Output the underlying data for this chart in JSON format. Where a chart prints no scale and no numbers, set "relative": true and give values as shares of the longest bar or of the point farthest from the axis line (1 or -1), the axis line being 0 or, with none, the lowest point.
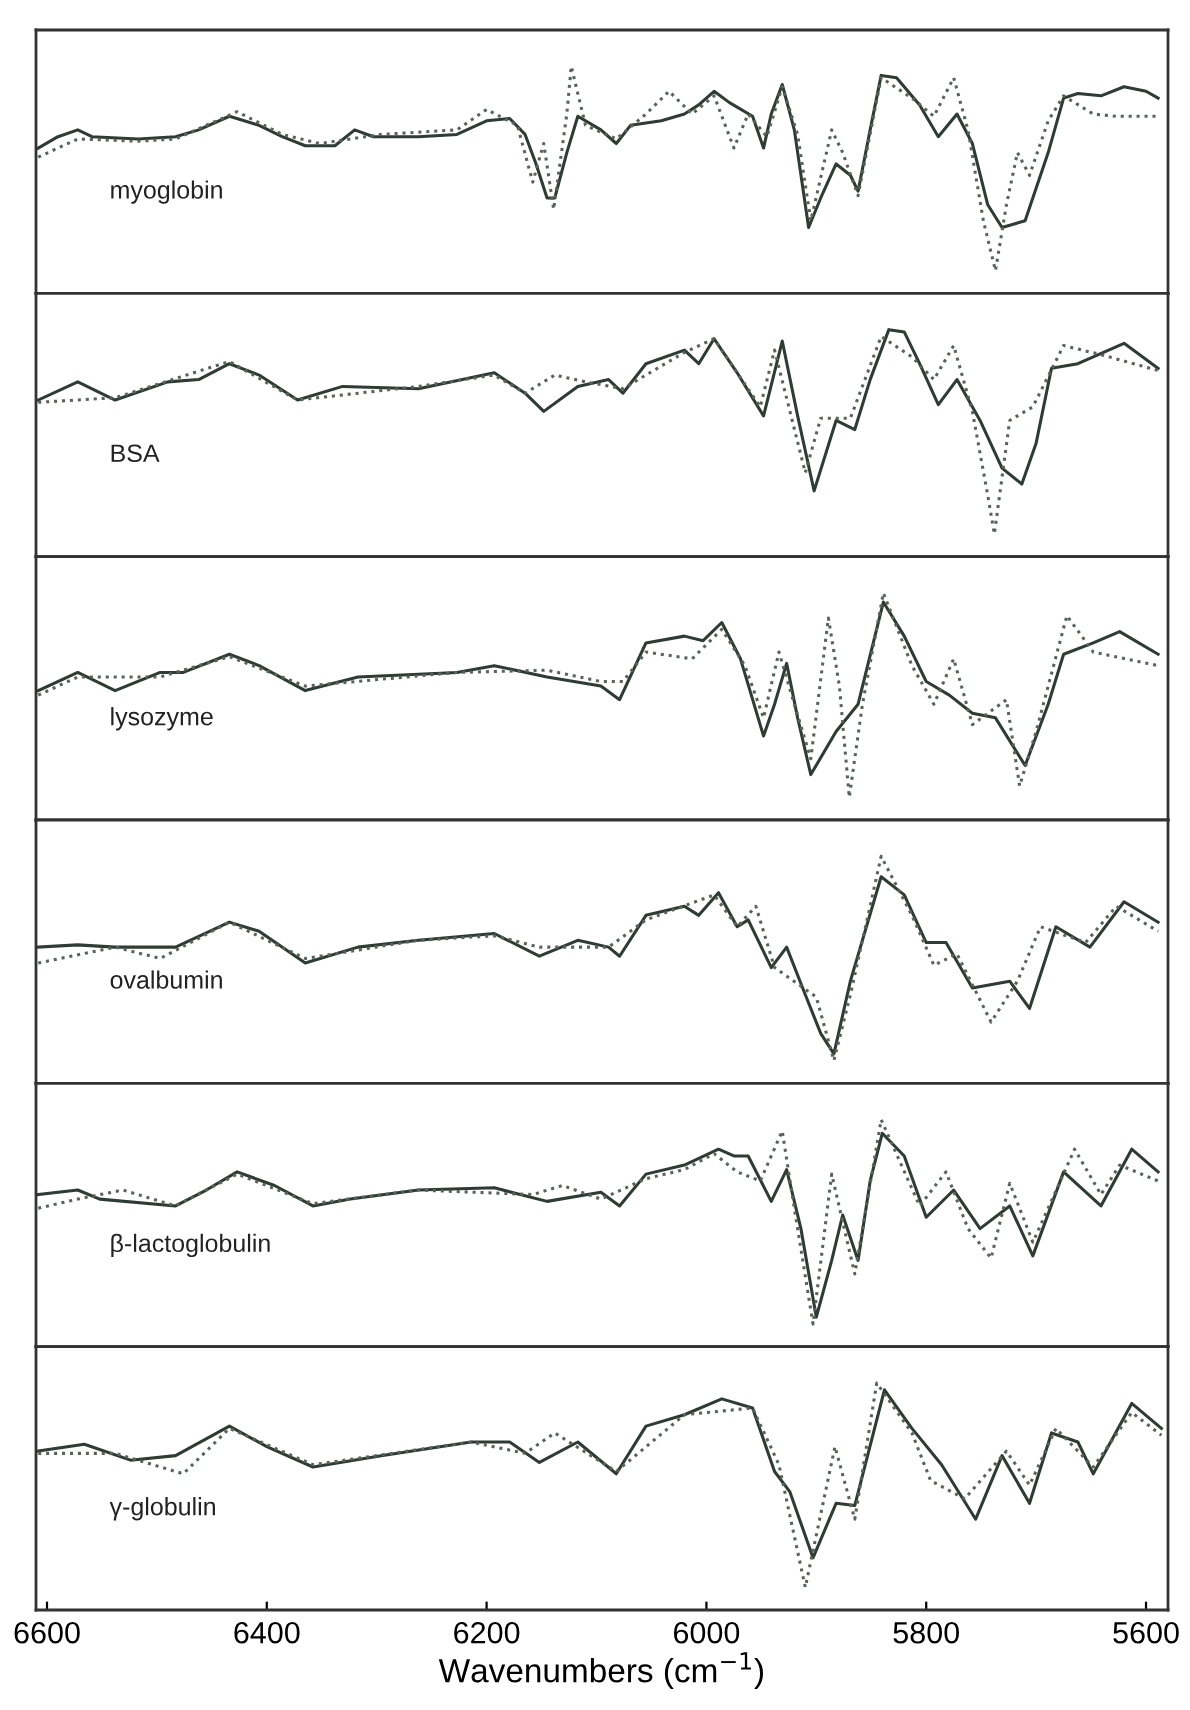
{
  "chart_data": [
    {
      "type": "line",
      "relative": true,
      "xlim": [
        6610,
        5580
      ],
      "tick_labels": false,
      "annotations": [
        "myoglobin"
      ],
      "series": [
        {
          "color": "#2f3b35",
          "line_style": "solid",
          "x": [
            6608,
            6590,
            6572,
            6559,
            6517,
            6483,
            6462,
            6434,
            6407,
            6386,
            6365,
            6338,
            6320,
            6303,
            6262,
            6227,
            6200,
            6179,
            6165,
            6155,
            6145,
            6138,
            6127,
            6117,
            6096,
            6082,
            6069,
            6041,
            6020,
            6007,
            5993,
            5979,
            5958,
            5948,
            5941,
            5931,
            5920,
            5907,
            5896,
            5882,
            5869,
            5862,
            5851,
            5841,
            5827,
            5806,
            5789,
            5772,
            5758,
            5744,
            5731,
            5710,
            5689,
            5675,
            5662,
            5641,
            5620,
            5600,
            5589
          ],
          "values": [
            0.64,
            0.69,
            0.72,
            0.69,
            0.68,
            0.69,
            0.72,
            0.78,
            0.74,
            0.69,
            0.65,
            0.65,
            0.72,
            0.69,
            0.69,
            0.7,
            0.76,
            0.77,
            0.7,
            0.57,
            0.42,
            0.42,
            0.62,
            0.78,
            0.72,
            0.66,
            0.74,
            0.76,
            0.79,
            0.83,
            0.89,
            0.84,
            0.78,
            0.64,
            0.79,
            0.92,
            0.72,
            0.29,
            0.42,
            0.57,
            0.52,
            0.45,
            0.72,
            0.96,
            0.95,
            0.83,
            0.69,
            0.79,
            0.66,
            0.39,
            0.29,
            0.32,
            0.62,
            0.86,
            0.88,
            0.87,
            0.91,
            0.89,
            0.86
          ]
        },
        {
          "color": "#59635c",
          "line_style": "dotted",
          "x": [
            6608,
            6572,
            6517,
            6483,
            6427,
            6386,
            6352,
            6296,
            6227,
            6200,
            6172,
            6158,
            6148,
            6139,
            6127,
            6123,
            6110,
            6082,
            6055,
            6034,
            6013,
            5993,
            5975,
            5962,
            5945,
            5931,
            5917,
            5905,
            5886,
            5876,
            5862,
            5841,
            5813,
            5793,
            5775,
            5762,
            5748,
            5737,
            5727,
            5717,
            5706,
            5689,
            5675,
            5648,
            5627,
            5589
          ],
          "values": [
            0.6,
            0.68,
            0.67,
            0.68,
            0.8,
            0.7,
            0.66,
            0.7,
            0.72,
            0.81,
            0.74,
            0.49,
            0.66,
            0.37,
            0.79,
            1.0,
            0.74,
            0.68,
            0.79,
            0.89,
            0.79,
            0.87,
            0.64,
            0.79,
            0.69,
            0.91,
            0.7,
            0.32,
            0.72,
            0.62,
            0.43,
            0.95,
            0.86,
            0.78,
            0.95,
            0.72,
            0.32,
            0.1,
            0.39,
            0.62,
            0.52,
            0.76,
            0.87,
            0.79,
            0.78,
            0.78
          ]
        }
      ]
    },
    {
      "type": "line",
      "relative": true,
      "xlim": [
        6610,
        5580
      ],
      "tick_labels": false,
      "annotations": [
        "BSA"
      ],
      "series": [
        {
          "color": "#2f3b35",
          "line_style": "solid",
          "x": [
            6608,
            6572,
            6538,
            6490,
            6462,
            6434,
            6407,
            6372,
            6331,
            6262,
            6193,
            6165,
            6148,
            6117,
            6089,
            6076,
            6055,
            6020,
            6007,
            5993,
            5972,
            5948,
            5931,
            5917,
            5902,
            5882,
            5865,
            5851,
            5834,
            5820,
            5806,
            5789,
            5772,
            5751,
            5731,
            5713,
            5700,
            5686,
            5662,
            5620,
            5589
          ],
          "values": [
            0.69,
            0.77,
            0.69,
            0.77,
            0.78,
            0.85,
            0.8,
            0.69,
            0.75,
            0.74,
            0.81,
            0.72,
            0.64,
            0.75,
            0.78,
            0.72,
            0.85,
            0.91,
            0.85,
            0.96,
            0.81,
            0.62,
            0.95,
            0.62,
            0.29,
            0.6,
            0.56,
            0.78,
            1.0,
            0.99,
            0.85,
            0.67,
            0.78,
            0.6,
            0.39,
            0.32,
            0.5,
            0.83,
            0.85,
            0.94,
            0.83
          ]
        },
        {
          "color": "#59635c",
          "line_style": "dotted",
          "x": [
            6608,
            6538,
            6434,
            6372,
            6262,
            6193,
            6165,
            6138,
            6110,
            6076,
            6020,
            5993,
            5951,
            5938,
            5910,
            5896,
            5869,
            5841,
            5813,
            5793,
            5775,
            5758,
            5744,
            5738,
            5724,
            5703,
            5675,
            5641,
            5589
          ],
          "values": [
            0.68,
            0.7,
            0.86,
            0.69,
            0.75,
            0.8,
            0.72,
            0.8,
            0.77,
            0.74,
            0.9,
            0.96,
            0.66,
            0.91,
            0.37,
            0.61,
            0.61,
            0.97,
            0.88,
            0.78,
            0.93,
            0.64,
            0.27,
            0.1,
            0.6,
            0.66,
            0.93,
            0.89,
            0.82
          ]
        }
      ]
    },
    {
      "type": "line",
      "relative": true,
      "xlim": [
        6610,
        5580
      ],
      "tick_labels": false,
      "annotations": [
        "lysozyme"
      ],
      "series": [
        {
          "color": "#2f3b35",
          "line_style": "solid",
          "x": [
            6608,
            6572,
            6538,
            6497,
            6476,
            6434,
            6407,
            6365,
            6317,
            6227,
            6193,
            6145,
            6096,
            6079,
            6055,
            6020,
            6003,
            5986,
            5969,
            5948,
            5938,
            5927,
            5917,
            5905,
            5882,
            5862,
            5839,
            5820,
            5800,
            5779,
            5758,
            5737,
            5710,
            5689,
            5675,
            5648,
            5624,
            5589
          ],
          "values": [
            0.57,
            0.65,
            0.57,
            0.65,
            0.65,
            0.73,
            0.68,
            0.57,
            0.63,
            0.65,
            0.68,
            0.63,
            0.59,
            0.53,
            0.78,
            0.81,
            0.79,
            0.87,
            0.71,
            0.37,
            0.51,
            0.69,
            0.45,
            0.2,
            0.39,
            0.51,
            0.96,
            0.81,
            0.61,
            0.55,
            0.47,
            0.45,
            0.24,
            0.51,
            0.73,
            0.78,
            0.83,
            0.73
          ]
        },
        {
          "color": "#59635c",
          "line_style": "dotted",
          "x": [
            6608,
            6572,
            6497,
            6434,
            6365,
            6227,
            6145,
            6096,
            6076,
            6055,
            6013,
            5986,
            5965,
            5948,
            5934,
            5920,
            5905,
            5889,
            5879,
            5870,
            5858,
            5839,
            5813,
            5793,
            5775,
            5758,
            5727,
            5715,
            5700,
            5672,
            5648,
            5589
          ],
          "values": [
            0.55,
            0.63,
            0.63,
            0.72,
            0.59,
            0.65,
            0.66,
            0.61,
            0.61,
            0.74,
            0.71,
            0.84,
            0.68,
            0.45,
            0.74,
            0.51,
            0.27,
            0.89,
            0.59,
            0.1,
            0.51,
            1.0,
            0.68,
            0.51,
            0.71,
            0.42,
            0.53,
            0.15,
            0.39,
            0.9,
            0.74,
            0.68
          ]
        }
      ]
    },
    {
      "type": "line",
      "relative": true,
      "xlim": [
        6610,
        5580
      ],
      "tick_labels": false,
      "annotations": [
        "ovalbumin"
      ],
      "series": [
        {
          "color": "#2f3b35",
          "line_style": "solid",
          "x": [
            6608,
            6572,
            6538,
            6483,
            6434,
            6407,
            6365,
            6317,
            6262,
            6193,
            6152,
            6117,
            6089,
            6079,
            6055,
            6020,
            6007,
            5989,
            5972,
            5962,
            5941,
            5927,
            5910,
            5896,
            5884,
            5869,
            5841,
            5820,
            5800,
            5782,
            5758,
            5724,
            5706,
            5682,
            5651,
            5620,
            5589
          ],
          "values": [
            0.6,
            0.61,
            0.6,
            0.6,
            0.71,
            0.67,
            0.53,
            0.6,
            0.63,
            0.66,
            0.56,
            0.63,
            0.6,
            0.56,
            0.74,
            0.78,
            0.74,
            0.84,
            0.69,
            0.72,
            0.51,
            0.6,
            0.39,
            0.22,
            0.13,
            0.45,
            0.91,
            0.83,
            0.62,
            0.62,
            0.42,
            0.45,
            0.33,
            0.69,
            0.6,
            0.8,
            0.71
          ]
        },
        {
          "color": "#59635c",
          "line_style": "dotted",
          "x": [
            6608,
            6538,
            6497,
            6434,
            6365,
            6262,
            6193,
            6152,
            6089,
            6055,
            5993,
            5972,
            5955,
            5938,
            5900,
            5884,
            5869,
            5841,
            5813,
            5793,
            5772,
            5741,
            5717,
            5696,
            5655,
            5627,
            5589
          ],
          "values": [
            0.53,
            0.6,
            0.55,
            0.71,
            0.55,
            0.63,
            0.65,
            0.6,
            0.6,
            0.72,
            0.83,
            0.69,
            0.78,
            0.51,
            0.38,
            0.1,
            0.39,
            1.0,
            0.74,
            0.52,
            0.57,
            0.27,
            0.45,
            0.69,
            0.62,
            0.78,
            0.67
          ]
        }
      ]
    },
    {
      "type": "line",
      "relative": true,
      "xlim": [
        6610,
        5580
      ],
      "tick_labels": false,
      "annotations": [
        "β-lactoglobulin"
      ],
      "series": [
        {
          "color": "#2f3b35",
          "line_style": "solid",
          "x": [
            6608,
            6572,
            6552,
            6483,
            6455,
            6427,
            6393,
            6358,
            6324,
            6262,
            6193,
            6145,
            6096,
            6079,
            6055,
            6020,
            5989,
            5975,
            5962,
            5941,
            5927,
            5914,
            5900,
            5886,
            5876,
            5862,
            5851,
            5840,
            5820,
            5800,
            5775,
            5751,
            5724,
            5703,
            5675,
            5641,
            5613,
            5589
          ],
          "values": [
            0.67,
            0.69,
            0.65,
            0.62,
            0.69,
            0.77,
            0.71,
            0.62,
            0.65,
            0.69,
            0.7,
            0.64,
            0.68,
            0.62,
            0.76,
            0.8,
            0.87,
            0.84,
            0.84,
            0.64,
            0.78,
            0.52,
            0.13,
            0.38,
            0.58,
            0.38,
            0.73,
            0.94,
            0.84,
            0.57,
            0.69,
            0.52,
            0.62,
            0.4,
            0.77,
            0.62,
            0.87,
            0.77
          ]
        },
        {
          "color": "#59635c",
          "line_style": "dotted",
          "x": [
            6608,
            6572,
            6531,
            6483,
            6427,
            6358,
            6262,
            6158,
            6131,
            6096,
            6055,
            6020,
            5993,
            5972,
            5951,
            5931,
            5920,
            5903,
            5886,
            5865,
            5841,
            5806,
            5782,
            5762,
            5741,
            5724,
            5703,
            5665,
            5641,
            5624,
            5589
          ],
          "values": [
            0.61,
            0.65,
            0.69,
            0.62,
            0.76,
            0.63,
            0.69,
            0.67,
            0.71,
            0.65,
            0.74,
            0.78,
            0.85,
            0.77,
            0.73,
            0.95,
            0.61,
            0.1,
            0.76,
            0.32,
            1.0,
            0.62,
            0.77,
            0.52,
            0.39,
            0.72,
            0.46,
            0.87,
            0.67,
            0.8,
            0.73
          ]
        }
      ]
    },
    {
      "type": "line",
      "relative": true,
      "xlim": [
        6610,
        5580
      ],
      "xticks": [
        6600,
        6400,
        6200,
        6000,
        5800,
        5600
      ],
      "tick_labels": "x",
      "xlabel": "Wavenumbers (cm$^{−1}$)",
      "annotations": [
        "γ-globulin"
      ],
      "series": [
        {
          "color": "#2f3b35",
          "line_style": "solid",
          "x": [
            6608,
            6566,
            6524,
            6483,
            6434,
            6400,
            6358,
            6296,
            6214,
            6179,
            6152,
            6117,
            6082,
            6055,
            6020,
            5986,
            5958,
            5938,
            5924,
            5903,
            5882,
            5865,
            5838,
            5813,
            5786,
            5755,
            5731,
            5706,
            5686,
            5662,
            5648,
            5613,
            5586
          ],
          "values": [
            0.7,
            0.73,
            0.66,
            0.68,
            0.81,
            0.72,
            0.63,
            0.68,
            0.74,
            0.74,
            0.65,
            0.74,
            0.6,
            0.81,
            0.86,
            0.93,
            0.89,
            0.61,
            0.52,
            0.23,
            0.47,
            0.46,
            0.97,
            0.8,
            0.64,
            0.4,
            0.68,
            0.47,
            0.78,
            0.74,
            0.6,
            0.91,
            0.8
          ]
        },
        {
          "color": "#59635c",
          "line_style": "dotted",
          "x": [
            6608,
            6538,
            6476,
            6434,
            6358,
            6214,
            6165,
            6138,
            6082,
            6020,
            5958,
            5934,
            5910,
            5883,
            5865,
            5845,
            5813,
            5796,
            5765,
            5727,
            5706,
            5682,
            5648,
            5613,
            5586
          ],
          "values": [
            0.69,
            0.69,
            0.6,
            0.8,
            0.64,
            0.74,
            0.69,
            0.78,
            0.61,
            0.86,
            0.89,
            0.64,
            0.1,
            0.72,
            0.4,
            1.0,
            0.78,
            0.57,
            0.49,
            0.7,
            0.55,
            0.8,
            0.63,
            0.87,
            0.77
          ]
        }
      ]
    }
  ]
}
